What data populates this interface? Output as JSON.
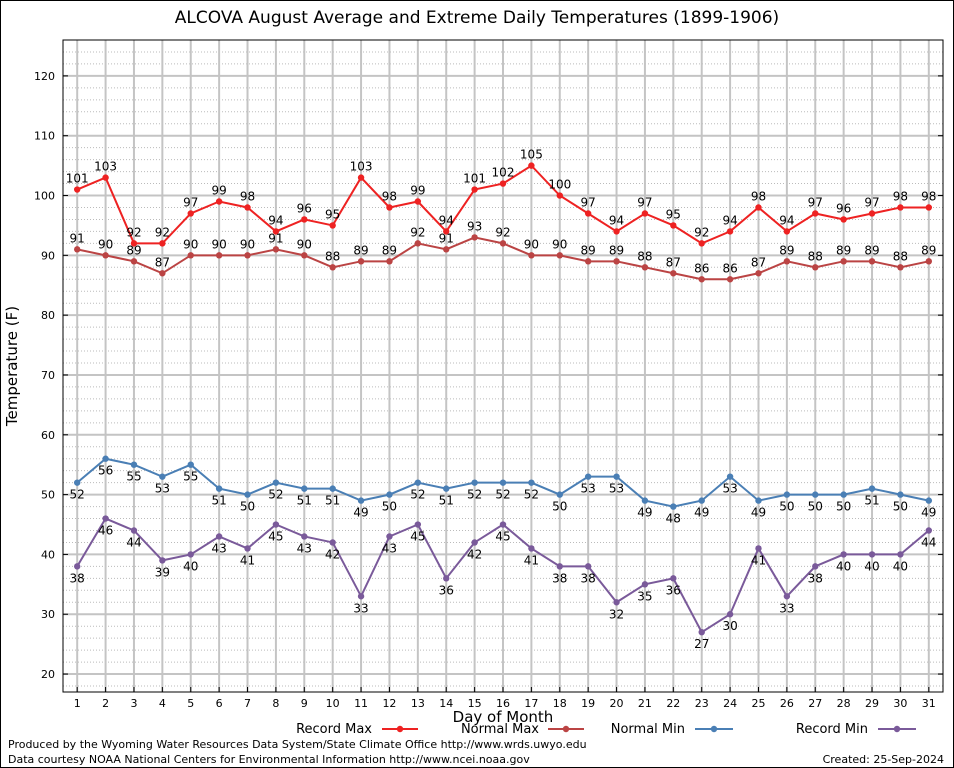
{
  "title": "ALCOVA August Average and Extreme Daily Temperatures (1899-1906)",
  "footer": {
    "line1": "Produced by the Wyoming Water Resources Data System/State Climate Office http://www.wrds.uwyo.edu",
    "line2": "Data courtesy NOAA National Centers for Environmental Information http://www.ncei.noaa.gov",
    "created": "Created:  25-Sep-2024"
  },
  "colors": {
    "record_max": "#ee2222",
    "normal_max": "#bb4444",
    "normal_min": "#4a7fb5",
    "record_min": "#7a5a9a"
  },
  "chart_data": {
    "type": "line",
    "title": "ALCOVA August Average and Extreme Daily Temperatures (1899-1906)",
    "xlabel": "Day of Month",
    "ylabel": "Temperature (F)",
    "xlim": [
      0.5,
      31.5
    ],
    "ylim": [
      17,
      126
    ],
    "yticks": [
      20,
      30,
      40,
      50,
      60,
      70,
      80,
      90,
      100,
      110,
      120
    ],
    "x": [
      1,
      2,
      3,
      4,
      5,
      6,
      7,
      8,
      9,
      10,
      11,
      12,
      13,
      14,
      15,
      16,
      17,
      18,
      19,
      20,
      21,
      22,
      23,
      24,
      25,
      26,
      27,
      28,
      29,
      30,
      31
    ],
    "grid": true,
    "legend_position": "bottom",
    "series": [
      {
        "name": "Record Max",
        "color": "#ee2222",
        "label_pos": "above",
        "values": [
          101,
          103,
          92,
          92,
          97,
          99,
          98,
          94,
          96,
          95,
          103,
          98,
          99,
          94,
          101,
          102,
          105,
          100,
          97,
          94,
          97,
          95,
          92,
          94,
          98,
          94,
          97,
          96,
          97,
          98,
          98
        ]
      },
      {
        "name": "Normal Max",
        "color": "#bb4444",
        "label_pos": "above",
        "values": [
          91,
          90,
          89,
          87,
          90,
          90,
          90,
          91,
          90,
          88,
          89,
          89,
          92,
          91,
          93,
          92,
          90,
          90,
          89,
          89,
          88,
          87,
          86,
          86,
          87,
          89,
          88,
          89,
          89,
          88,
          89
        ]
      },
      {
        "name": "Normal Min",
        "color": "#4a7fb5",
        "label_pos": "below",
        "values": [
          52,
          56,
          55,
          53,
          55,
          51,
          50,
          52,
          51,
          51,
          49,
          50,
          52,
          51,
          52,
          52,
          52,
          50,
          53,
          53,
          49,
          48,
          49,
          53,
          49,
          50,
          50,
          50,
          51,
          50,
          49
        ]
      },
      {
        "name": "Record Min",
        "color": "#7a5a9a",
        "label_pos": "below",
        "values": [
          38,
          46,
          44,
          39,
          40,
          43,
          41,
          45,
          43,
          42,
          33,
          43,
          45,
          36,
          42,
          45,
          41,
          38,
          38,
          32,
          35,
          36,
          27,
          30,
          41,
          33,
          38,
          40,
          40,
          40,
          44
        ]
      }
    ]
  }
}
